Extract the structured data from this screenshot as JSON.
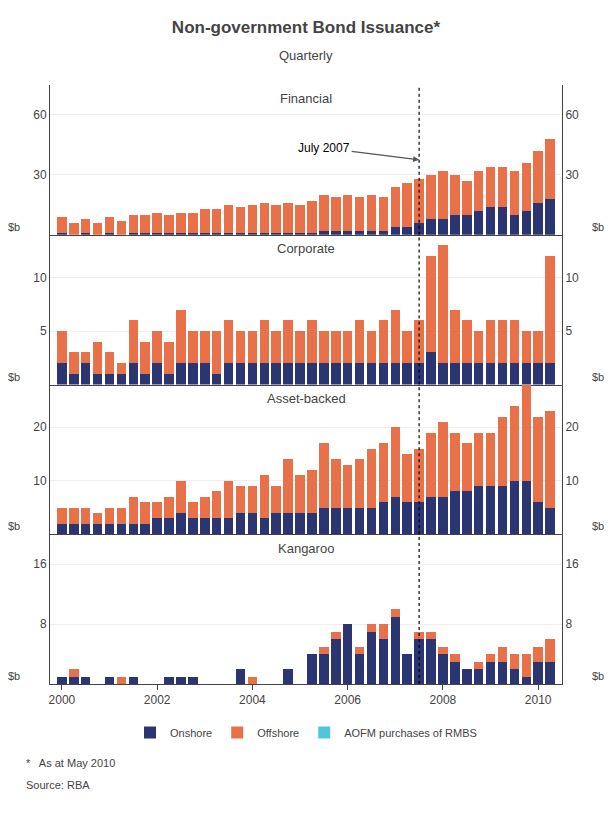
{
  "title": "Non-government Bond Issuance*",
  "subtitle": "Quarterly",
  "footnote": "*   As at May 2010",
  "source": "Source: RBA",
  "legend": "bottom",
  "chart_data": [
    {
      "type": "bar",
      "stacked": true,
      "title": "Financial",
      "ylabel": "$b",
      "x": [
        2000,
        2000.25,
        2000.5,
        2000.75,
        2001,
        2001.25,
        2001.5,
        2001.75,
        2002,
        2002.25,
        2002.5,
        2002.75,
        2003,
        2003.25,
        2003.5,
        2003.75,
        2004,
        2004.25,
        2004.5,
        2004.75,
        2005,
        2005.25,
        2005.5,
        2005.75,
        2006,
        2006.25,
        2006.5,
        2006.75,
        2007,
        2007.25,
        2007.5,
        2007.75,
        2008,
        2008.25,
        2008.5,
        2008.75,
        2009,
        2009.25,
        2009.5,
        2009.75,
        2010,
        2010.25
      ],
      "xlim": [
        1999.75,
        2010.5
      ],
      "ylim": [
        0,
        75
      ],
      "yticks": [
        30,
        60
      ],
      "grid": true,
      "tick_labels": "y",
      "vertical_line": {
        "x": 2007.5,
        "line_style": "dotted"
      },
      "annotations": [
        {
          "text": "July 2007",
          "x": 2007.5
        }
      ],
      "series": [
        {
          "name": "Onshore",
          "color": "#2B3572",
          "values": [
            1,
            0,
            1,
            0,
            1,
            0,
            1,
            1,
            1,
            1,
            1,
            1,
            1,
            1,
            1,
            1,
            1,
            1,
            1,
            1,
            1,
            1,
            2,
            2,
            2,
            2,
            2,
            2,
            4,
            4,
            6,
            8,
            8,
            10,
            10,
            12,
            14,
            14,
            10,
            12,
            16,
            18
          ]
        },
        {
          "name": "Offshore",
          "color": "#E8714A",
          "values": [
            8,
            6,
            7,
            6,
            8,
            7,
            9,
            9,
            10,
            9,
            10,
            10,
            12,
            12,
            14,
            13,
            14,
            15,
            14,
            15,
            14,
            16,
            18,
            17,
            18,
            17,
            18,
            17,
            20,
            22,
            22,
            22,
            24,
            20,
            17,
            20,
            20,
            20,
            22,
            24,
            26,
            30
          ]
        },
        {
          "name": "AOFM purchases of RMBS",
          "color": "#4EC8D8",
          "values": [
            0,
            0,
            0,
            0,
            0,
            0,
            0,
            0,
            0,
            0,
            0,
            0,
            0,
            0,
            0,
            0,
            0,
            0,
            0,
            0,
            0,
            0,
            0,
            0,
            0,
            0,
            0,
            0,
            0,
            0,
            0,
            0,
            0,
            0,
            0,
            0,
            0,
            0,
            0,
            0,
            0,
            0
          ]
        }
      ]
    },
    {
      "type": "bar",
      "stacked": true,
      "title": "Corporate",
      "ylabel": "$b",
      "x": [
        2000,
        2000.25,
        2000.5,
        2000.75,
        2001,
        2001.25,
        2001.5,
        2001.75,
        2002,
        2002.25,
        2002.5,
        2002.75,
        2003,
        2003.25,
        2003.5,
        2003.75,
        2004,
        2004.25,
        2004.5,
        2004.75,
        2005,
        2005.25,
        2005.5,
        2005.75,
        2006,
        2006.25,
        2006.5,
        2006.75,
        2007,
        2007.25,
        2007.5,
        2007.75,
        2008,
        2008.25,
        2008.5,
        2008.75,
        2009,
        2009.25,
        2009.5,
        2009.75,
        2010,
        2010.25
      ],
      "xlim": [
        1999.75,
        2010.5
      ],
      "ylim": [
        0,
        14
      ],
      "yticks": [
        5,
        10
      ],
      "grid": true,
      "tick_labels": "y",
      "vertical_line": {
        "x": 2007.5,
        "line_style": "dotted"
      },
      "series": [
        {
          "name": "Onshore",
          "color": "#2B3572",
          "values": [
            2,
            1,
            2,
            1,
            1,
            1,
            2,
            1,
            2,
            1,
            2,
            2,
            2,
            1,
            2,
            2,
            2,
            2,
            2,
            2,
            2,
            2,
            2,
            2,
            2,
            2,
            2,
            2,
            2,
            2,
            2,
            3,
            2,
            2,
            2,
            2,
            2,
            2,
            2,
            2,
            2,
            2
          ]
        },
        {
          "name": "Offshore",
          "color": "#E8714A",
          "values": [
            3,
            2,
            1,
            3,
            2,
            1,
            4,
            3,
            3,
            3,
            5,
            3,
            3,
            4,
            4,
            3,
            3,
            4,
            3,
            4,
            3,
            4,
            3,
            3,
            3,
            4,
            3,
            4,
            5,
            3,
            4,
            9,
            11,
            5,
            4,
            3,
            4,
            4,
            4,
            3,
            3,
            10
          ]
        },
        {
          "name": "AOFM purchases of RMBS",
          "color": "#4EC8D8",
          "values": [
            0,
            0,
            0,
            0,
            0,
            0,
            0,
            0,
            0,
            0,
            0,
            0,
            0,
            0,
            0,
            0,
            0,
            0,
            0,
            0,
            0,
            0,
            0,
            0,
            0,
            0,
            0,
            0,
            0,
            0,
            0,
            0,
            0,
            0,
            0,
            0,
            0,
            0,
            0,
            0,
            0,
            0
          ]
        }
      ]
    },
    {
      "type": "bar",
      "stacked": true,
      "title": "Asset-backed",
      "ylabel": "$b",
      "x": [
        2000,
        2000.25,
        2000.5,
        2000.75,
        2001,
        2001.25,
        2001.5,
        2001.75,
        2002,
        2002.25,
        2002.5,
        2002.75,
        2003,
        2003.25,
        2003.5,
        2003.75,
        2004,
        2004.25,
        2004.5,
        2004.75,
        2005,
        2005.25,
        2005.5,
        2005.75,
        2006,
        2006.25,
        2006.5,
        2006.75,
        2007,
        2007.25,
        2007.5,
        2007.75,
        2008,
        2008.25,
        2008.5,
        2008.75,
        2009,
        2009.25,
        2009.5,
        2009.75,
        2010,
        2010.25
      ],
      "xlim": [
        1999.75,
        2010.5
      ],
      "ylim": [
        0,
        28
      ],
      "yticks": [
        10,
        20
      ],
      "grid": true,
      "tick_labels": "y",
      "vertical_line": {
        "x": 2007.5,
        "line_style": "dotted"
      },
      "series": [
        {
          "name": "Onshore",
          "color": "#2B3572",
          "values": [
            2,
            2,
            2,
            2,
            2,
            2,
            2,
            2,
            3,
            3,
            4,
            3,
            3,
            3,
            3,
            4,
            4,
            3,
            4,
            4,
            4,
            4,
            5,
            5,
            5,
            5,
            5,
            6,
            7,
            6,
            6,
            7,
            7,
            8,
            8,
            9,
            9,
            9,
            10,
            10,
            6,
            5
          ]
        },
        {
          "name": "Offshore",
          "color": "#E8714A",
          "values": [
            3,
            3,
            3,
            2,
            3,
            3,
            5,
            4,
            3,
            4,
            6,
            3,
            4,
            5,
            7,
            5,
            5,
            8,
            5,
            10,
            7,
            8,
            12,
            9,
            8,
            9,
            11,
            11,
            13,
            9,
            10,
            12,
            14,
            11,
            9,
            10,
            10,
            13,
            14,
            18,
            16,
            18
          ]
        },
        {
          "name": "AOFM purchases of RMBS",
          "color": "#4EC8D8",
          "values": [
            0,
            0,
            0,
            0,
            0,
            0,
            0,
            0,
            0,
            0,
            0,
            0,
            0,
            0,
            0,
            0,
            0,
            0,
            0,
            0,
            0,
            0,
            0,
            0,
            0,
            0,
            0,
            0,
            0,
            0,
            0,
            0,
            0,
            0,
            0,
            0,
            0,
            0,
            0,
            0,
            0,
            0
          ]
        }
      ]
    },
    {
      "type": "bar",
      "stacked": true,
      "title": "Kangaroo",
      "ylabel": "$b",
      "x": [
        2000,
        2000.25,
        2000.5,
        2000.75,
        2001,
        2001.25,
        2001.5,
        2001.75,
        2002,
        2002.25,
        2002.5,
        2002.75,
        2003,
        2003.25,
        2003.5,
        2003.75,
        2004,
        2004.25,
        2004.5,
        2004.75,
        2005,
        2005.25,
        2005.5,
        2005.75,
        2006,
        2006.25,
        2006.5,
        2006.75,
        2007,
        2007.25,
        2007.5,
        2007.75,
        2008,
        2008.25,
        2008.5,
        2008.75,
        2009,
        2009.25,
        2009.5,
        2009.75,
        2010,
        2010.25
      ],
      "xlim": [
        1999.75,
        2010.5
      ],
      "xticks": [
        2000,
        2002,
        2004,
        2006,
        2008,
        2010
      ],
      "ylim": [
        0,
        20
      ],
      "yticks": [
        8,
        16
      ],
      "grid": true,
      "vertical_line": {
        "x": 2007.5,
        "line_style": "dotted"
      },
      "series": [
        {
          "name": "Onshore",
          "color": "#2B3572",
          "values": [
            1,
            1,
            1,
            0,
            1,
            0,
            1,
            0,
            0,
            1,
            1,
            1,
            0,
            0,
            0,
            2,
            0,
            0,
            0,
            2,
            0,
            4,
            4,
            6,
            8,
            4,
            7,
            6,
            9,
            4,
            6,
            6,
            4,
            3,
            2,
            2,
            3,
            3,
            2,
            1,
            3,
            3
          ]
        },
        {
          "name": "Offshore",
          "color": "#E8714A",
          "values": [
            0,
            1,
            0,
            0,
            0,
            1,
            0,
            0,
            0,
            0,
            0,
            0,
            0,
            0,
            0,
            0,
            1,
            0,
            0,
            0,
            0,
            0,
            1,
            1,
            0,
            1,
            1,
            2,
            1,
            0,
            1,
            1,
            1,
            1,
            0,
            1,
            1,
            2,
            2,
            3,
            2,
            3
          ]
        },
        {
          "name": "AOFM purchases of RMBS",
          "color": "#4EC8D8",
          "values": [
            0,
            0,
            0,
            0,
            0,
            0,
            0,
            0,
            0,
            0,
            0,
            0,
            0,
            0,
            0,
            0,
            0,
            0,
            0,
            0,
            0,
            0,
            0,
            0,
            0,
            0,
            0,
            0,
            0,
            0,
            0,
            0,
            0,
            0,
            0,
            0,
            0,
            0,
            0,
            0,
            0,
            0
          ]
        }
      ]
    }
  ]
}
